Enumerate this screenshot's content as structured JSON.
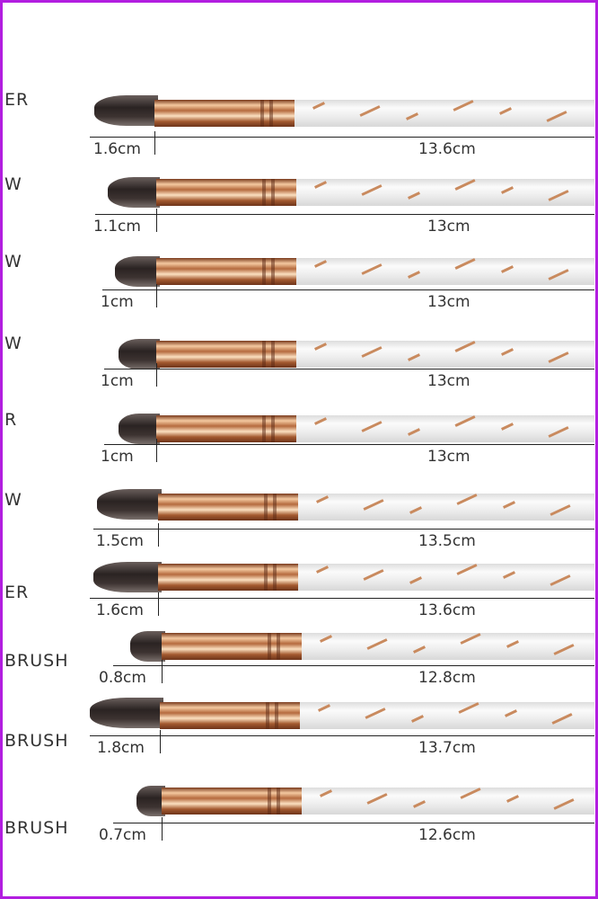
{
  "brushes": [
    {
      "label": "ER",
      "tip": "1.6cm",
      "length": "13.6cm"
    },
    {
      "label": "W",
      "tip": "1.1cm",
      "length": "13cm"
    },
    {
      "label": "W",
      "tip": "1cm",
      "length": "13cm"
    },
    {
      "label": "W",
      "tip": "1cm",
      "length": "13cm"
    },
    {
      "label": "R",
      "tip": "1cm",
      "length": "13cm"
    },
    {
      "label": "W",
      "tip": "1.5cm",
      "length": "13.5cm"
    },
    {
      "label": "ER",
      "tip": "1.6cm",
      "length": "13.6cm"
    },
    {
      "label": "BRUSH",
      "tip": "0.8cm",
      "length": "12.8cm"
    },
    {
      "label": "BRUSH",
      "tip": "1.8cm",
      "length": "13.7cm"
    },
    {
      "label": "BRUSH",
      "tip": "0.7cm",
      "length": "12.6cm"
    }
  ],
  "colors": {
    "border": "#b21ee0",
    "ferrule": "#c9825a",
    "bristles": "#2a2322"
  }
}
